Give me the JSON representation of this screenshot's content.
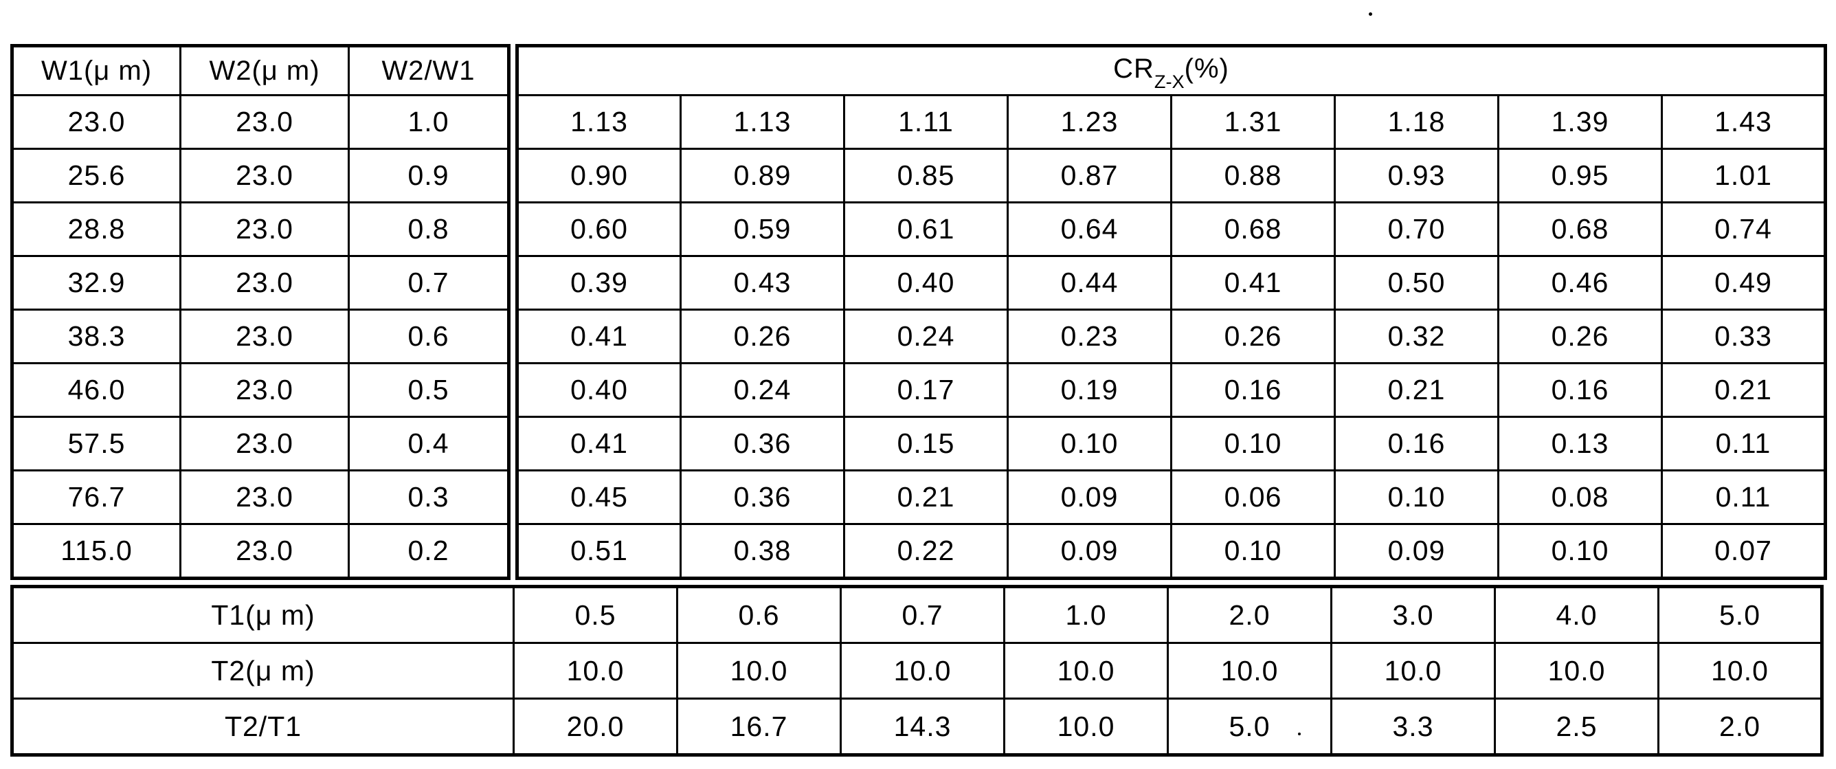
{
  "table": {
    "left_header": [
      "W1(μ m)",
      "W2(μ m)",
      "W2/W1"
    ],
    "right_header": {
      "base": "CR",
      "sub": "Z-X",
      "suffix": "(%)"
    },
    "rows": [
      {
        "w1": "23.0",
        "w2": "23.0",
        "ratio": "1.0",
        "cr": [
          "1.13",
          "1.13",
          "1.11",
          "1.23",
          "1.31",
          "1.18",
          "1.39",
          "1.43"
        ]
      },
      {
        "w1": "25.6",
        "w2": "23.0",
        "ratio": "0.9",
        "cr": [
          "0.90",
          "0.89",
          "0.85",
          "0.87",
          "0.88",
          "0.93",
          "0.95",
          "1.01"
        ]
      },
      {
        "w1": "28.8",
        "w2": "23.0",
        "ratio": "0.8",
        "cr": [
          "0.60",
          "0.59",
          "0.61",
          "0.64",
          "0.68",
          "0.70",
          "0.68",
          "0.74"
        ]
      },
      {
        "w1": "32.9",
        "w2": "23.0",
        "ratio": "0.7",
        "cr": [
          "0.39",
          "0.43",
          "0.40",
          "0.44",
          "0.41",
          "0.50",
          "0.46",
          "0.49"
        ]
      },
      {
        "w1": "38.3",
        "w2": "23.0",
        "ratio": "0.6",
        "cr": [
          "0.41",
          "0.26",
          "0.24",
          "0.23",
          "0.26",
          "0.32",
          "0.26",
          "0.33"
        ]
      },
      {
        "w1": "46.0",
        "w2": "23.0",
        "ratio": "0.5",
        "cr": [
          "0.40",
          "0.24",
          "0.17",
          "0.19",
          "0.16",
          "0.21",
          "0.16",
          "0.21"
        ]
      },
      {
        "w1": "57.5",
        "w2": "23.0",
        "ratio": "0.4",
        "cr": [
          "0.41",
          "0.36",
          "0.15",
          "0.10",
          "0.10",
          "0.16",
          "0.13",
          "0.11"
        ]
      },
      {
        "w1": "76.7",
        "w2": "23.0",
        "ratio": "0.3",
        "cr": [
          "0.45",
          "0.36",
          "0.21",
          "0.09",
          "0.06",
          "0.10",
          "0.08",
          "0.11"
        ]
      },
      {
        "w1": "115.0",
        "w2": "23.0",
        "ratio": "0.2",
        "cr": [
          "0.51",
          "0.38",
          "0.22",
          "0.09",
          "0.10",
          "0.09",
          "0.10",
          "0.07"
        ]
      }
    ],
    "footer_rows": [
      {
        "label": "T1(μ m)",
        "values": [
          "0.5",
          "0.6",
          "0.7",
          "1.0",
          "2.0",
          "3.0",
          "4.0",
          "5.0"
        ]
      },
      {
        "label": "T2(μ m)",
        "values": [
          "10.0",
          "10.0",
          "10.0",
          "10.0",
          "10.0",
          "10.0",
          "10.0",
          "10.0"
        ]
      },
      {
        "label": "T2/T1",
        "values": [
          "20.0",
          "16.7",
          "14.3",
          "10.0",
          "5.0",
          "3.3",
          "2.5",
          "2.0"
        ]
      }
    ]
  }
}
